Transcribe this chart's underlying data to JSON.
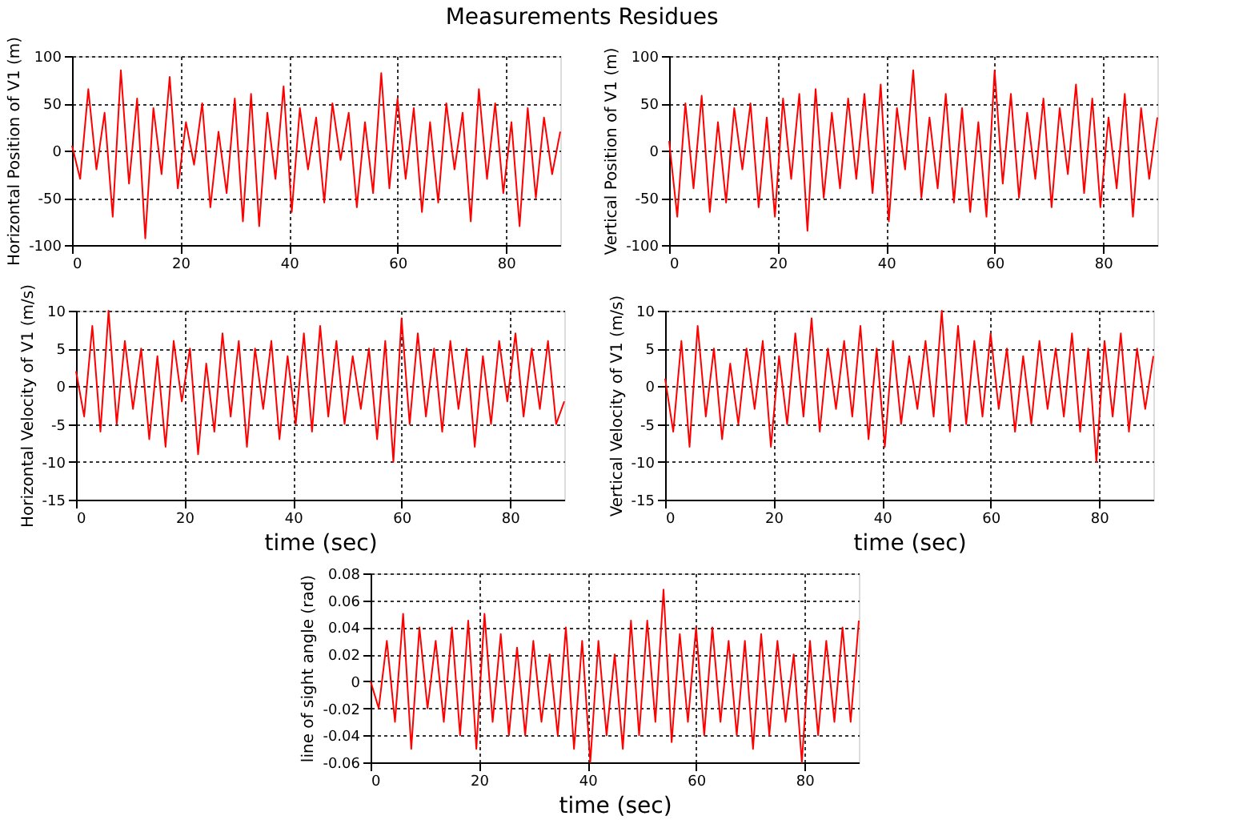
{
  "chart_data": [
    {
      "type": "line",
      "title": "Measurements Residues",
      "ylabel": "Horizontal Position of V1 (m)",
      "color": "#ff0000",
      "grid": true,
      "xlim": [
        0,
        90
      ],
      "xticks": [
        0,
        20,
        40,
        60,
        80
      ],
      "ylim": [
        -100,
        100
      ],
      "yticks": [
        -100,
        -50,
        0,
        50,
        100
      ],
      "x": [
        0,
        1.5,
        3,
        4.5,
        6,
        7.5,
        9,
        10.5,
        12,
        13.5,
        15,
        16.5,
        18,
        19.5,
        21,
        22.5,
        24,
        25.5,
        27,
        28.5,
        30,
        31.5,
        33,
        34.5,
        36,
        37.5,
        39,
        40.5,
        42,
        43.5,
        45,
        46.5,
        48,
        49.5,
        51,
        52.5,
        54,
        55.5,
        57,
        58.5,
        60,
        61.5,
        63,
        64.5,
        66,
        67.5,
        69,
        70.5,
        72,
        73.5,
        75,
        76.5,
        78,
        79.5,
        81,
        82.5,
        84,
        85.5,
        87,
        88.5,
        90
      ],
      "values": [
        5,
        -30,
        65,
        -20,
        40,
        -70,
        85,
        -35,
        55,
        -93,
        45,
        -25,
        78,
        -40,
        30,
        -15,
        50,
        -60,
        20,
        -45,
        55,
        -75,
        60,
        -80,
        40,
        -30,
        68,
        -65,
        45,
        -20,
        35,
        -55,
        50,
        -10,
        40,
        -60,
        30,
        -45,
        82,
        -40,
        55,
        -30,
        45,
        -65,
        30,
        -55,
        50,
        -20,
        40,
        -75,
        65,
        -30,
        50,
        -45,
        30,
        -80,
        45,
        -50,
        35,
        -25,
        20
      ]
    },
    {
      "type": "line",
      "ylabel": "Vertical Position of V1 (m)",
      "color": "#ff0000",
      "grid": true,
      "xlim": [
        0,
        90
      ],
      "xticks": [
        0,
        20,
        40,
        60,
        80
      ],
      "ylim": [
        -100,
        100
      ],
      "yticks": [
        -100,
        -50,
        0,
        50,
        100
      ],
      "x": [
        0,
        1.5,
        3,
        4.5,
        6,
        7.5,
        9,
        10.5,
        12,
        13.5,
        15,
        16.5,
        18,
        19.5,
        21,
        22.5,
        24,
        25.5,
        27,
        28.5,
        30,
        31.5,
        33,
        34.5,
        36,
        37.5,
        39,
        40.5,
        42,
        43.5,
        45,
        46.5,
        48,
        49.5,
        51,
        52.5,
        54,
        55.5,
        57,
        58.5,
        60,
        61.5,
        63,
        64.5,
        66,
        67.5,
        69,
        70.5,
        72,
        73.5,
        75,
        76.5,
        78,
        79.5,
        81,
        82.5,
        84,
        85.5,
        87,
        88.5,
        90
      ],
      "values": [
        10,
        -70,
        50,
        -40,
        58,
        -65,
        30,
        -55,
        45,
        -20,
        50,
        -60,
        35,
        -70,
        55,
        -30,
        60,
        -85,
        65,
        -50,
        40,
        -40,
        55,
        -30,
        60,
        -45,
        70,
        -75,
        45,
        -20,
        85,
        -50,
        35,
        -40,
        60,
        -55,
        45,
        -65,
        30,
        -70,
        85,
        -35,
        60,
        -50,
        40,
        -30,
        55,
        -60,
        45,
        -25,
        70,
        -45,
        55,
        -60,
        35,
        -40,
        60,
        -70,
        45,
        -30,
        35
      ]
    },
    {
      "type": "line",
      "ylabel": "Horizontal Velocity of V1 (m/s)",
      "xlabel": "time (sec)",
      "color": "#ff0000",
      "grid": true,
      "xlim": [
        0,
        90
      ],
      "xticks": [
        0,
        20,
        40,
        60,
        80
      ],
      "ylim": [
        -15,
        10
      ],
      "yticks": [
        -15,
        -10,
        -5,
        0,
        5,
        10
      ],
      "x": [
        0,
        1.5,
        3,
        4.5,
        6,
        7.5,
        9,
        10.5,
        12,
        13.5,
        15,
        16.5,
        18,
        19.5,
        21,
        22.5,
        24,
        25.5,
        27,
        28.5,
        30,
        31.5,
        33,
        34.5,
        36,
        37.5,
        39,
        40.5,
        42,
        43.5,
        45,
        46.5,
        48,
        49.5,
        51,
        52.5,
        54,
        55.5,
        57,
        58.5,
        60,
        61.5,
        63,
        64.5,
        66,
        67.5,
        69,
        70.5,
        72,
        73.5,
        75,
        76.5,
        78,
        79.5,
        81,
        82.5,
        84,
        85.5,
        87,
        88.5,
        90
      ],
      "values": [
        2,
        -4,
        8,
        -6,
        10,
        -5,
        6,
        -3,
        5,
        -7,
        4,
        -8,
        6,
        -2,
        5,
        -9,
        3,
        -6,
        7,
        -4,
        6,
        -8,
        5,
        -3,
        6,
        -7,
        4,
        -5,
        7,
        -6,
        8,
        -4,
        6,
        -5,
        4,
        -3,
        5,
        -7,
        6,
        -10,
        9,
        -5,
        7,
        -4,
        5,
        -6,
        6,
        -3,
        5,
        -8,
        4,
        -5,
        6,
        -2,
        7,
        -4,
        5,
        -3,
        6,
        -5,
        -2
      ]
    },
    {
      "type": "line",
      "ylabel": "Vertical Velocity of V1 (m/s)",
      "xlabel": "time (sec)",
      "color": "#ff0000",
      "grid": true,
      "xlim": [
        0,
        90
      ],
      "xticks": [
        0,
        20,
        40,
        60,
        80
      ],
      "ylim": [
        -15,
        10
      ],
      "yticks": [
        -15,
        -10,
        -5,
        0,
        5,
        10
      ],
      "x": [
        0,
        1.5,
        3,
        4.5,
        6,
        7.5,
        9,
        10.5,
        12,
        13.5,
        15,
        16.5,
        18,
        19.5,
        21,
        22.5,
        24,
        25.5,
        27,
        28.5,
        30,
        31.5,
        33,
        34.5,
        36,
        37.5,
        39,
        40.5,
        42,
        43.5,
        45,
        46.5,
        48,
        49.5,
        51,
        52.5,
        54,
        55.5,
        57,
        58.5,
        60,
        61.5,
        63,
        64.5,
        66,
        67.5,
        69,
        70.5,
        72,
        73.5,
        75,
        76.5,
        78,
        79.5,
        81,
        82.5,
        84,
        85.5,
        87,
        88.5,
        90
      ],
      "values": [
        1,
        -6,
        6,
        -8,
        8,
        -4,
        5,
        -7,
        3,
        -5,
        5,
        -3,
        6,
        -8,
        4,
        -5,
        7,
        -4,
        9,
        -6,
        5,
        -3,
        6,
        -4,
        8,
        -7,
        5,
        -8,
        6,
        -5,
        4,
        -3,
        6,
        -4,
        10,
        -6,
        8,
        -5,
        6,
        -4,
        7,
        -3,
        5,
        -6,
        4,
        -5,
        6,
        -3,
        5,
        -4,
        7,
        -6,
        5,
        -10,
        6,
        -4,
        7,
        -6,
        5,
        -3,
        4
      ]
    },
    {
      "type": "line",
      "ylabel": "line of sight angle (rad)",
      "xlabel": "time (sec)",
      "color": "#ff0000",
      "grid": true,
      "xlim": [
        0,
        90
      ],
      "xticks": [
        0,
        20,
        40,
        60,
        80
      ],
      "ylim": [
        -0.06,
        0.08
      ],
      "yticks": [
        -0.06,
        -0.04,
        -0.02,
        0,
        0.02,
        0.04,
        0.06,
        0.08
      ],
      "x": [
        0,
        1.5,
        3,
        4.5,
        6,
        7.5,
        9,
        10.5,
        12,
        13.5,
        15,
        16.5,
        18,
        19.5,
        21,
        22.5,
        24,
        25.5,
        27,
        28.5,
        30,
        31.5,
        33,
        34.5,
        36,
        37.5,
        39,
        40.5,
        42,
        43.5,
        45,
        46.5,
        48,
        49.5,
        51,
        52.5,
        54,
        55.5,
        57,
        58.5,
        60,
        61.5,
        63,
        64.5,
        66,
        67.5,
        69,
        70.5,
        72,
        73.5,
        75,
        76.5,
        78,
        79.5,
        81,
        82.5,
        84,
        85.5,
        87,
        88.5,
        90
      ],
      "values": [
        0,
        -0.02,
        0.03,
        -0.03,
        0.05,
        -0.05,
        0.04,
        -0.02,
        0.03,
        -0.03,
        0.04,
        -0.04,
        0.045,
        -0.05,
        0.05,
        -0.03,
        0.035,
        -0.04,
        0.025,
        -0.04,
        0.03,
        -0.03,
        0.02,
        -0.04,
        0.04,
        -0.05,
        0.03,
        -0.06,
        0.03,
        -0.04,
        0.02,
        -0.05,
        0.045,
        -0.04,
        0.045,
        -0.03,
        0.068,
        -0.045,
        0.035,
        -0.03,
        0.04,
        -0.04,
        0.04,
        -0.03,
        0.03,
        -0.04,
        0.03,
        -0.05,
        0.035,
        -0.04,
        0.03,
        -0.03,
        0.02,
        -0.06,
        0.03,
        -0.04,
        0.03,
        -0.03,
        0.04,
        -0.03,
        0.045
      ]
    }
  ]
}
